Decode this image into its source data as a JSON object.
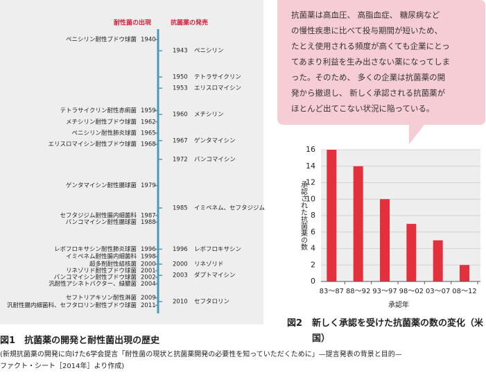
{
  "timeline": {
    "left_header": "耐性菌の出現",
    "right_header": "抗菌薬の発売",
    "resistance": [
      {
        "name": "ペニシリン耐性ブドウ球菌",
        "year": 1940
      },
      {
        "name": "テトラサイクリン耐性赤痢菌",
        "year": 1959
      },
      {
        "name": "メチシリン耐性ブドウ球菌",
        "year": 1962
      },
      {
        "name": "ペニシリン耐性肺炎球菌",
        "year": 1965
      },
      {
        "name": "エリスロマイシン耐性ブドウ球菌",
        "year": 1968
      },
      {
        "name": "ゲンタマイシン耐性腸球菌",
        "year": 1979
      },
      {
        "name": "セフタジジム耐性腸内細菌科",
        "year": 1987
      },
      {
        "name": "バンコマイシン耐性腸球菌",
        "year": 1988
      },
      {
        "name": "レボフロキサシン耐性肺炎球菌",
        "year": 1996
      },
      {
        "name": "イミペネム耐性腸内細菌科",
        "year": 1998
      },
      {
        "name": "超多剤耐性結核菌",
        "year": 2000
      },
      {
        "name": "リネゾリド耐性ブドウ球菌",
        "year": 2001
      },
      {
        "name": "バンコマイシン耐性ブドウ球菌",
        "year": 2002
      },
      {
        "name": "汎耐性アシネトバクター、緑膿菌",
        "year": 2004
      },
      {
        "name": "セフトリアキソン耐性淋菌",
        "year": 2009
      },
      {
        "name": "汎耐性腸内細菌科、セフタロリン耐性ブドウ球菌",
        "year": 2011
      }
    ],
    "drugs": [
      {
        "year": 1943,
        "name": "ペニシリン"
      },
      {
        "year": 1950,
        "name": "テトラサイクリン"
      },
      {
        "year": 1953,
        "name": "エリスロマイシン"
      },
      {
        "year": 1960,
        "name": "メチシリン"
      },
      {
        "year": 1967,
        "name": "ゲンタマイシン"
      },
      {
        "year": 1972,
        "name": "バンコマイシン"
      },
      {
        "year": 1985,
        "name": "イミペネム、セフタジジム"
      },
      {
        "year": 1996,
        "name": "レボフロキサシン"
      },
      {
        "year": 2000,
        "name": "リネゾリド"
      },
      {
        "year": 2003,
        "name": "ダプトマイシン"
      },
      {
        "year": 2010,
        "name": "セフタロリン"
      }
    ]
  },
  "speech_bubble": {
    "lines": [
      "抗菌薬は高血圧、 高脂血症、 糖尿病など",
      "の慢性疾患に比べて投与期間が短いため、",
      "たとえ使用される頻度が高くても企業にとっ",
      "てあまり利益を生み出さない薬になってしま",
      "った。そのため、 多くの企業は抗菌薬の開",
      "発から撤退し、 新しく承認される抗菌薬が",
      "ほとんど出てこない状況に陥っている。"
    ]
  },
  "figure1": {
    "label": "図1",
    "title": "抗菌薬の開発と耐性菌出現の歴史",
    "source_lines": [
      "(新規抗菌薬の開発に向けた6学会提言「耐性菌の現状と抗菌薬開発の必要性を知っていただくために」—提言発表の背景と目的—",
      "ファクト・シート［2014年］より作成)"
    ]
  },
  "figure2": {
    "label": "図2",
    "title": "新しく承認を受けた抗菌薬の数の変化（米国）"
  },
  "chart_data": {
    "type": "bar",
    "x_label": "承認年",
    "y_label": "承認された抗菌薬の数",
    "categories": [
      "83～87",
      "88～92",
      "93～97",
      "98～02",
      "03～07",
      "08～12"
    ],
    "values": [
      16,
      14,
      10,
      7,
      5,
      2
    ],
    "color": "#e2303c",
    "ylim": [
      0,
      16
    ],
    "yticks": [
      0,
      2,
      4,
      6,
      8,
      10,
      12,
      14,
      16
    ],
    "grid": true
  }
}
